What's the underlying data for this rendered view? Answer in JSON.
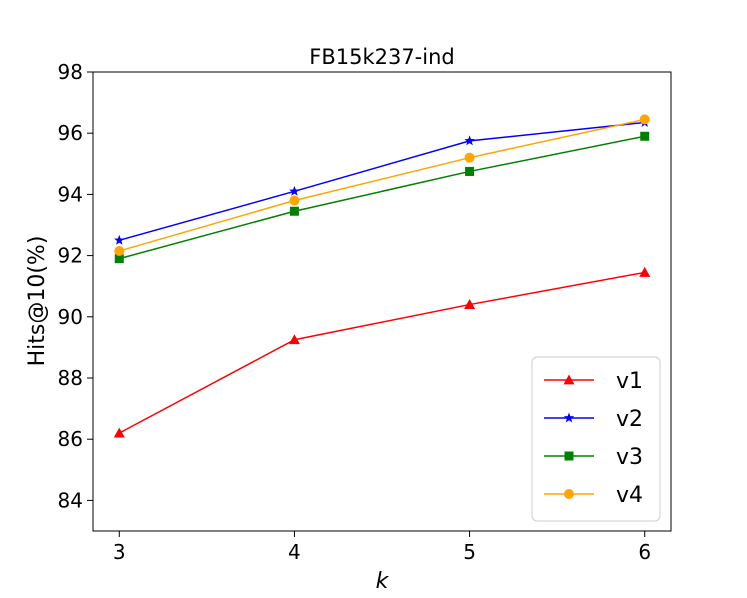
{
  "chart_data": {
    "type": "line",
    "title": "FB15k237-ind",
    "xlabel": "k",
    "ylabel": "Hits@10(%)",
    "x": [
      3,
      4,
      5,
      6
    ],
    "xticks": [
      "3",
      "4",
      "5",
      "6"
    ],
    "xlim": [
      2.85,
      6.15
    ],
    "ylim": [
      83,
      98
    ],
    "yticks": [
      84,
      86,
      88,
      90,
      92,
      94,
      96,
      98
    ],
    "grid": false,
    "legend_position": "lower right",
    "series": [
      {
        "name": "v1",
        "color": "#ff0000",
        "marker": "triangle",
        "values": [
          86.2,
          89.25,
          90.4,
          91.45
        ]
      },
      {
        "name": "v2",
        "color": "#0000ff",
        "marker": "star",
        "values": [
          92.5,
          94.1,
          95.75,
          96.35
        ]
      },
      {
        "name": "v3",
        "color": "#008000",
        "marker": "square",
        "values": [
          91.9,
          93.45,
          94.75,
          95.9
        ]
      },
      {
        "name": "v4",
        "color": "#ffa500",
        "marker": "circle",
        "values": [
          92.15,
          93.8,
          95.2,
          96.45
        ]
      }
    ]
  }
}
